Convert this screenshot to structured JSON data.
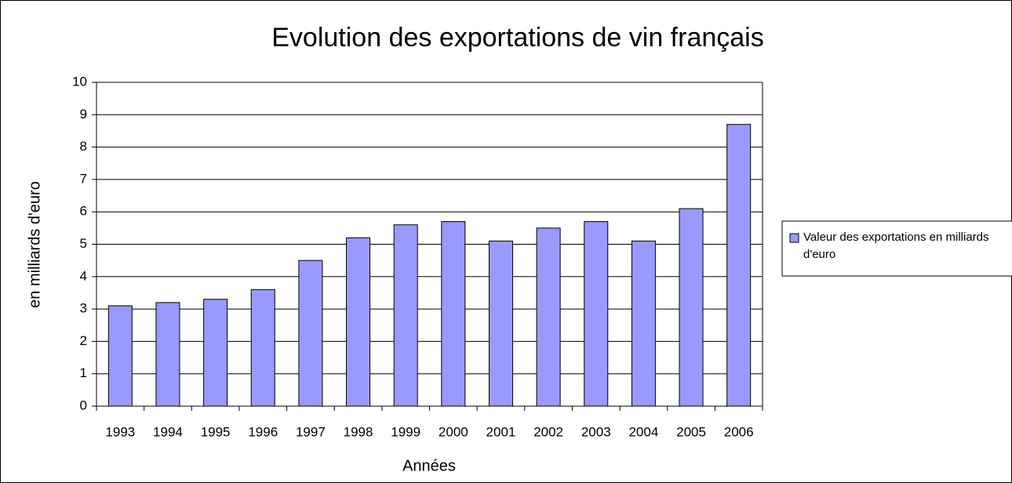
{
  "chart_data": {
    "type": "bar",
    "title": "Evolution des exportations de vin français",
    "x_label": "Années",
    "y_label": "en milliards d'euro",
    "categories": [
      "1993",
      "1994",
      "1995",
      "1996",
      "1997",
      "1998",
      "1999",
      "2000",
      "2001",
      "2002",
      "2003",
      "2004",
      "2005",
      "2006"
    ],
    "series": [
      {
        "name": "Valeur des exportations en milliards d'euro",
        "color": "#9999ff",
        "values": [
          3.1,
          3.2,
          3.3,
          3.6,
          4.5,
          5.2,
          5.6,
          5.7,
          5.1,
          5.5,
          5.7,
          5.1,
          6.1,
          8.7
        ]
      }
    ],
    "ylim": [
      0,
      10
    ],
    "yticks": [
      0,
      1,
      2,
      3,
      4,
      5,
      6,
      7,
      8,
      9,
      10
    ],
    "grid": true,
    "legend": "right"
  }
}
